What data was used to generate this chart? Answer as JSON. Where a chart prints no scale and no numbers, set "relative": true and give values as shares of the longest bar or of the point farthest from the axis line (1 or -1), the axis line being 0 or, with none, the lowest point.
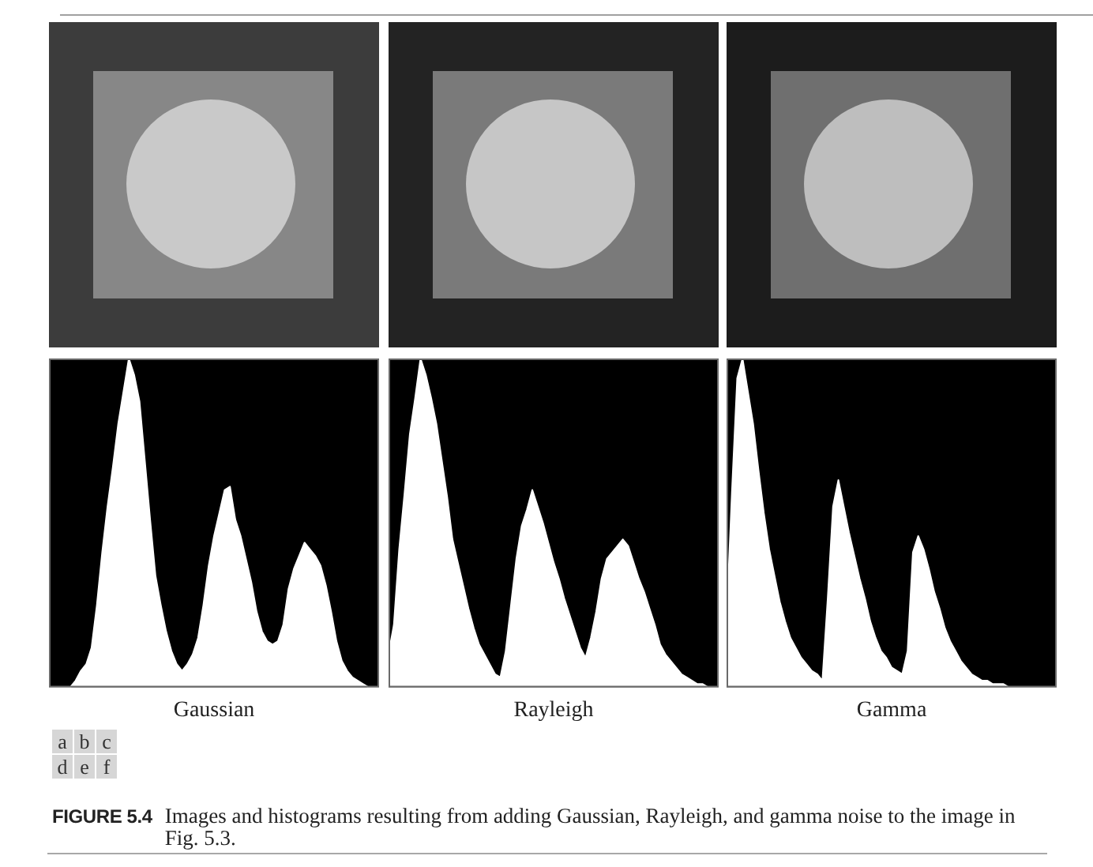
{
  "chart_data": [
    {
      "type": "area",
      "xlabel": "Gaussian",
      "relative": true,
      "tick_labels": false,
      "color": "#ffffff",
      "categories": [
        null,
        null,
        null,
        null,
        null,
        null,
        null,
        null,
        null,
        null,
        null,
        null,
        null,
        null,
        null,
        null,
        null,
        null,
        null,
        null,
        null,
        null,
        null,
        null,
        null,
        null,
        null,
        null,
        null,
        null,
        null,
        null,
        null,
        null,
        null,
        null,
        null,
        null,
        null,
        null,
        null,
        null,
        null,
        null,
        null,
        null,
        null,
        null,
        null,
        null,
        null,
        null,
        null,
        null,
        null,
        null,
        null,
        null,
        null,
        null,
        null,
        null,
        null
      ],
      "values": [
        0,
        0,
        0,
        0,
        0,
        0.02,
        0.05,
        0.07,
        0.12,
        0.25,
        0.41,
        0.55,
        0.67,
        0.8,
        0.9,
        1,
        0.95,
        0.87,
        0.69,
        0.51,
        0.34,
        0.25,
        0.17,
        0.11,
        0.07,
        0.05,
        0.07,
        0.1,
        0.15,
        0.25,
        0.37,
        0.46,
        0.53,
        0.6,
        0.61,
        0.51,
        0.46,
        0.39,
        0.32,
        0.23,
        0.17,
        0.14,
        0.13,
        0.14,
        0.19,
        0.3,
        0.36,
        0.4,
        0.44,
        0.42,
        0.4,
        0.37,
        0.31,
        0.23,
        0.14,
        0.08,
        0.05,
        0.03,
        0.02,
        0.01,
        0,
        0,
        0
      ]
    },
    {
      "type": "area",
      "xlabel": "Rayleigh",
      "relative": true,
      "tick_labels": false,
      "color": "#ffffff",
      "categories": [
        null,
        null,
        null,
        null,
        null,
        null,
        null,
        null,
        null,
        null,
        null,
        null,
        null,
        null,
        null,
        null,
        null,
        null,
        null,
        null,
        null,
        null,
        null,
        null,
        null,
        null,
        null,
        null,
        null,
        null,
        null,
        null,
        null,
        null,
        null,
        null,
        null,
        null,
        null,
        null,
        null,
        null,
        null,
        null,
        null,
        null,
        null,
        null,
        null,
        null,
        null,
        null,
        null,
        null,
        null,
        null,
        null,
        null,
        null,
        null,
        null,
        null,
        null
      ],
      "values": [
        0.1,
        0.19,
        0.42,
        0.59,
        0.77,
        0.88,
        1,
        0.95,
        0.88,
        0.8,
        0.69,
        0.58,
        0.45,
        0.38,
        0.31,
        0.24,
        0.18,
        0.13,
        0.1,
        0.07,
        0.04,
        0.03,
        0.11,
        0.25,
        0.39,
        0.49,
        0.54,
        0.6,
        0.55,
        0.5,
        0.44,
        0.38,
        0.33,
        0.27,
        0.22,
        0.17,
        0.12,
        0.09,
        0.15,
        0.23,
        0.33,
        0.39,
        0.41,
        0.43,
        0.45,
        0.43,
        0.38,
        0.33,
        0.29,
        0.24,
        0.19,
        0.13,
        0.1,
        0.08,
        0.06,
        0.04,
        0.03,
        0.02,
        0.01,
        0.01,
        0,
        0,
        0
      ]
    },
    {
      "type": "area",
      "xlabel": "Gamma",
      "relative": true,
      "tick_labels": false,
      "color": "#ffffff",
      "categories": [
        null,
        null,
        null,
        null,
        null,
        null,
        null,
        null,
        null,
        null,
        null,
        null,
        null,
        null,
        null,
        null,
        null,
        null,
        null,
        null,
        null,
        null,
        null,
        null,
        null,
        null,
        null,
        null,
        null,
        null,
        null,
        null,
        null,
        null,
        null,
        null,
        null,
        null,
        null,
        null,
        null,
        null,
        null,
        null,
        null,
        null,
        null,
        null,
        null,
        null,
        null,
        null,
        null,
        null,
        null,
        null,
        null,
        null,
        null,
        null,
        null,
        null,
        null
      ],
      "values": [
        0.2,
        0.59,
        0.94,
        1,
        0.9,
        0.8,
        0.66,
        0.53,
        0.42,
        0.34,
        0.26,
        0.2,
        0.15,
        0.12,
        0.09,
        0.07,
        0.05,
        0.04,
        0.02,
        0.27,
        0.55,
        0.63,
        0.55,
        0.47,
        0.4,
        0.33,
        0.27,
        0.2,
        0.15,
        0.11,
        0.09,
        0.06,
        0.05,
        0.04,
        0.11,
        0.41,
        0.46,
        0.42,
        0.36,
        0.29,
        0.24,
        0.18,
        0.14,
        0.11,
        0.08,
        0.06,
        0.04,
        0.03,
        0.02,
        0.02,
        0.01,
        0.01,
        0.01,
        0,
        0,
        0,
        0,
        0,
        0,
        0,
        0,
        0,
        0
      ]
    },
    {
      "type": "other",
      "title": "FIGURE 5.4",
      "annotations": [
        "a b c",
        "d e f",
        "Images and histograms resulting from adding Gaussian, Rayleigh, and gamma noise to the image in Fig. 5.3."
      ]
    }
  ]
}
